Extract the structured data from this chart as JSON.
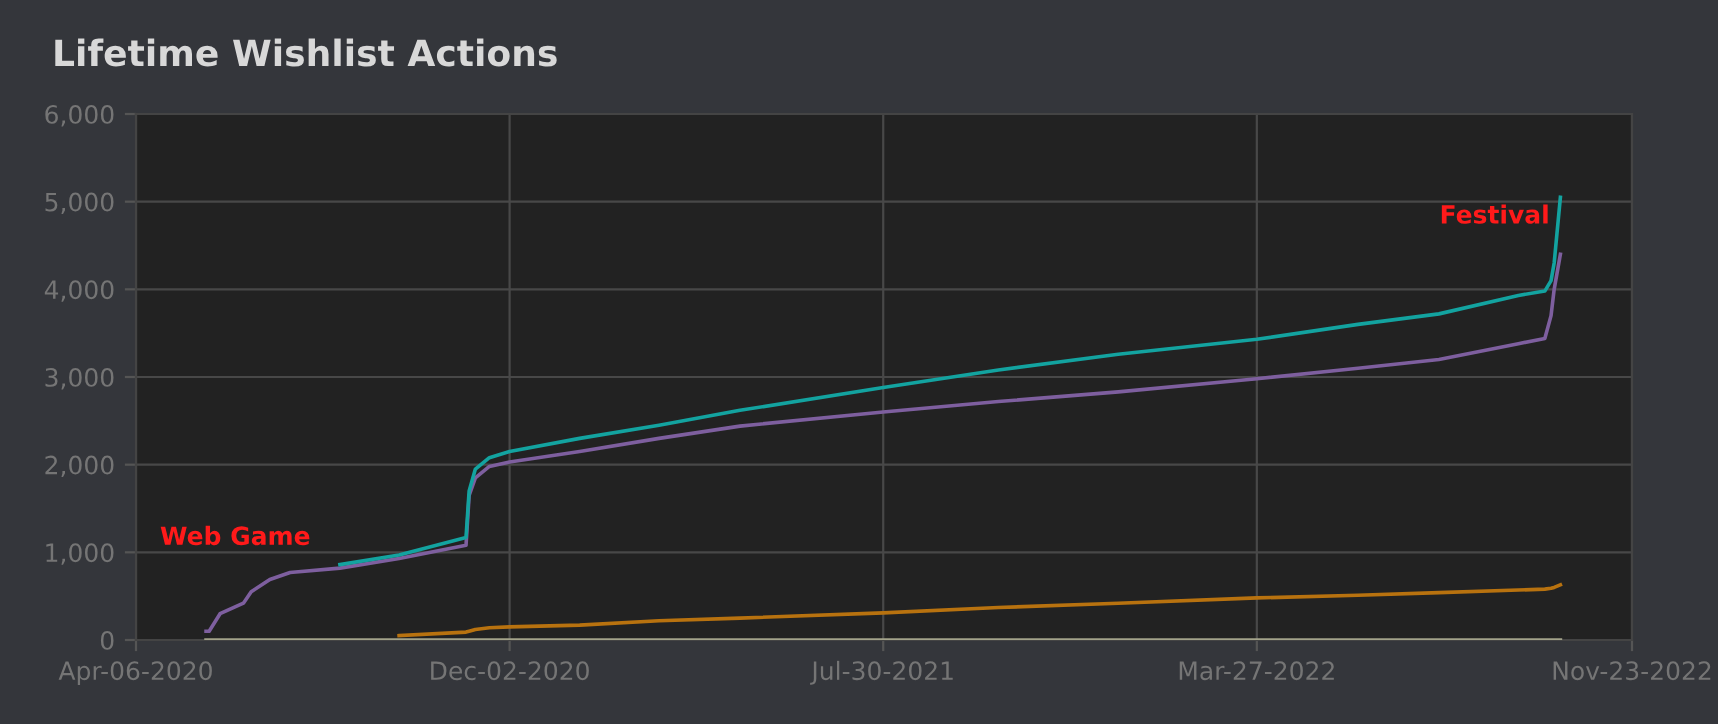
{
  "chart_data": {
    "type": "line",
    "title": "Lifetime Wishlist Actions",
    "x": [
      "2020-05-21",
      "2020-05-23",
      "2020-05-30",
      "2020-06-09",
      "2020-06-14",
      "2020-06-19",
      "2020-07-01",
      "2020-07-14",
      "2020-08-15",
      "2020-09-22",
      "2020-11-04",
      "2020-11-06",
      "2020-11-10",
      "2020-11-19",
      "2020-12-02",
      "2021-01-16",
      "2021-03-08",
      "2021-04-29",
      "2021-07-30",
      "2021-10-12",
      "2021-12-28",
      "2022-03-27",
      "2022-05-31",
      "2022-07-22",
      "2022-09-11",
      "2022-09-28",
      "2022-10-02",
      "2022-10-04",
      "2022-10-08"
    ],
    "series": [
      {
        "color": "#13a3a0",
        "values": [
          null,
          null,
          null,
          null,
          null,
          null,
          null,
          null,
          860,
          970,
          1170,
          1700,
          1950,
          2080,
          2150,
          2300,
          2450,
          2620,
          2880,
          3080,
          3260,
          3430,
          3600,
          3720,
          3930,
          3980,
          4100,
          4300,
          5050
        ]
      },
      {
        "color": "#7e5f9f",
        "values": [
          100,
          100,
          300,
          380,
          420,
          550,
          690,
          770,
          820,
          930,
          1080,
          1650,
          1850,
          1980,
          2030,
          2150,
          2300,
          2440,
          2600,
          2720,
          2830,
          2980,
          3100,
          3200,
          3380,
          3440,
          3700,
          4000,
          4400
        ]
      },
      {
        "color": "#b8720f",
        "values": [
          null,
          null,
          null,
          null,
          null,
          null,
          null,
          null,
          null,
          50,
          90,
          100,
          120,
          140,
          150,
          170,
          220,
          250,
          310,
          370,
          420,
          480,
          510,
          540,
          570,
          580,
          590,
          600,
          630
        ]
      },
      {
        "color": "#a3a38a",
        "values": [
          0,
          0,
          0,
          0,
          0,
          0,
          0,
          0,
          0,
          0,
          0,
          0,
          0,
          0,
          0,
          0,
          0,
          0,
          0,
          0,
          0,
          0,
          0,
          0,
          0,
          0,
          0,
          0,
          0
        ]
      }
    ],
    "xlim": [
      "2020-04-06",
      "2022-11-23"
    ],
    "xticks": [
      {
        "value": "2020-04-06",
        "label": "Apr-06-2020"
      },
      {
        "value": "2020-12-02",
        "label": "Dec-02-2020"
      },
      {
        "value": "2021-07-30",
        "label": "Jul-30-2021"
      },
      {
        "value": "2022-03-27",
        "label": "Mar-27-2022"
      },
      {
        "value": "2022-11-23",
        "label": "Nov-23-2022"
      }
    ],
    "ylim": [
      0,
      6000
    ],
    "yticks": [
      {
        "value": 0,
        "label": "0"
      },
      {
        "value": 1000,
        "label": "1,000"
      },
      {
        "value": 2000,
        "label": "2,000"
      },
      {
        "value": 3000,
        "label": "3,000"
      },
      {
        "value": 4000,
        "label": "4,000"
      },
      {
        "value": 5000,
        "label": "5,000"
      },
      {
        "value": 6000,
        "label": "6,000"
      }
    ],
    "grid": true,
    "annotations": [
      "Web Game",
      "Festival"
    ]
  }
}
